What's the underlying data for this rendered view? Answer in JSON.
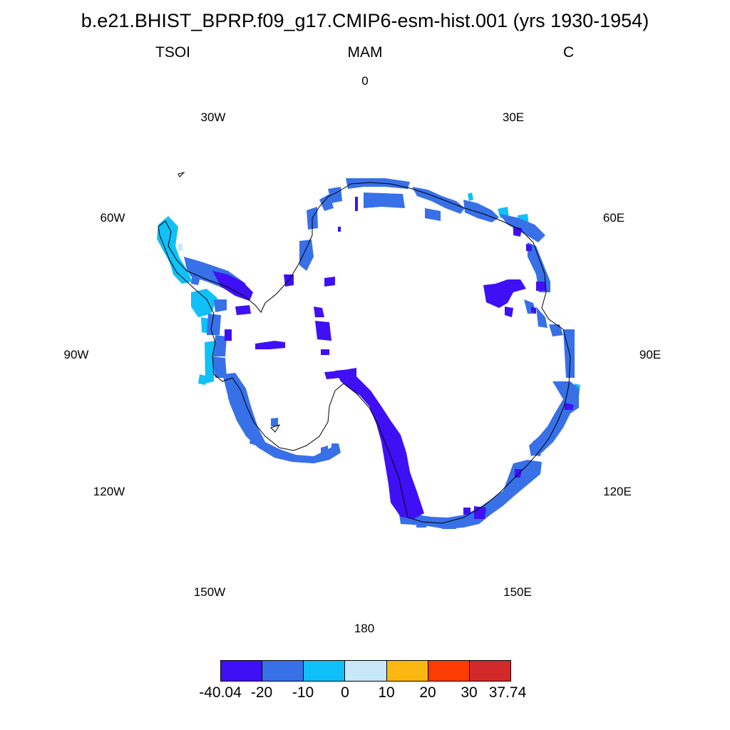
{
  "header": {
    "title": "b.e21.BHIST_BPRP.f09_g17.CMIP6-esm-hist.001 (yrs 1930-1954)",
    "variable": "TSOI",
    "season": "MAM",
    "units": "C"
  },
  "map": {
    "projection": "polar stereographic (south pole)",
    "longitude_labels": [
      "0",
      "30E",
      "60E",
      "90E",
      "120E",
      "150E",
      "180",
      "150W",
      "120W",
      "90W",
      "60W",
      "30W"
    ],
    "region": "Antarctica"
  },
  "colorbar": {
    "colors": [
      "#3f10f5",
      "#3870e8",
      "#10c0f8",
      "#c8e8f8",
      "#fcb810",
      "#fc3c00",
      "#d22a2a"
    ],
    "labels": [
      "-40.04",
      "-20",
      "-10",
      "0",
      "10",
      "20",
      "30",
      "37.74"
    ]
  }
}
